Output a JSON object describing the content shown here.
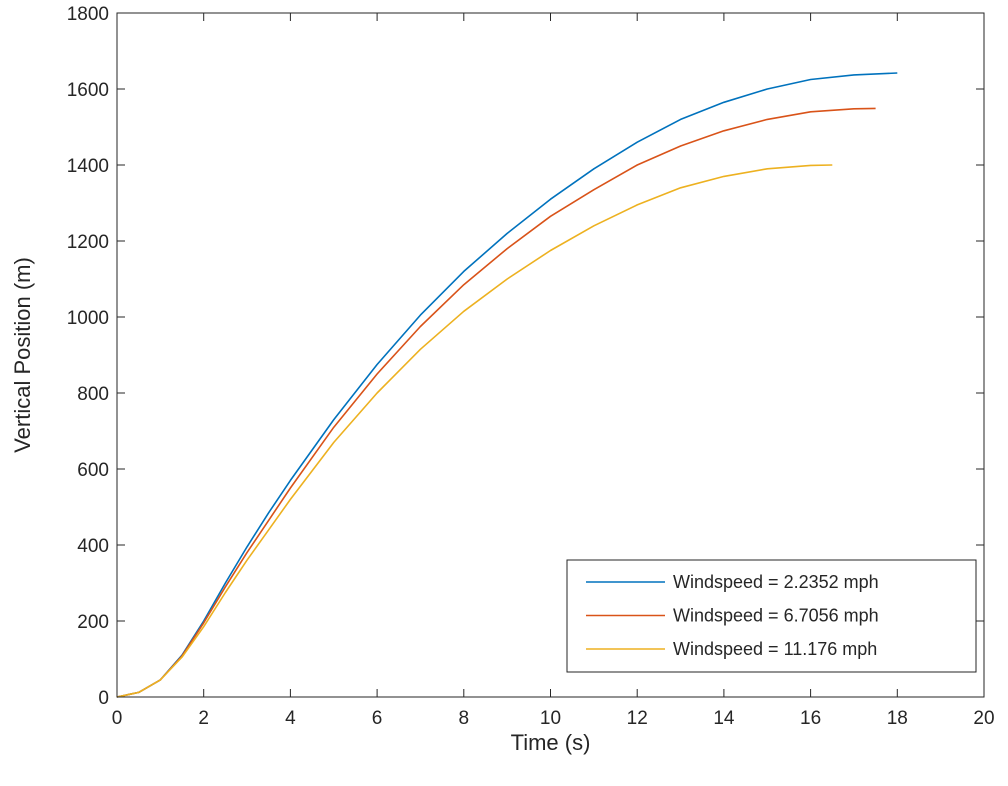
{
  "chart_data": {
    "type": "line",
    "title": "",
    "xlabel": "Time (s)",
    "ylabel": "Vertical Position (m)",
    "xlim": [
      0,
      20
    ],
    "ylim": [
      0,
      1800
    ],
    "xticks": [
      0,
      2,
      4,
      6,
      8,
      10,
      12,
      14,
      16,
      18,
      20
    ],
    "yticks": [
      0,
      200,
      400,
      600,
      800,
      1000,
      1200,
      1400,
      1600,
      1800
    ],
    "grid": false,
    "legend_position": "bottom-right",
    "series": [
      {
        "name": "Windspeed = 2.2352 mph",
        "color": "#0072BD",
        "x": [
          0,
          0.5,
          1,
          1.5,
          2,
          2.5,
          3,
          3.5,
          4,
          5,
          6,
          7,
          8,
          9,
          10,
          11,
          12,
          13,
          14,
          15,
          16,
          17,
          18
        ],
        "y": [
          0,
          12,
          45,
          110,
          200,
          300,
          395,
          485,
          570,
          730,
          875,
          1005,
          1120,
          1220,
          1310,
          1390,
          1460,
          1520,
          1565,
          1600,
          1625,
          1637,
          1642
        ]
      },
      {
        "name": "Windspeed = 6.7056 mph",
        "color": "#D95319",
        "x": [
          0,
          0.5,
          1,
          1.5,
          2,
          2.5,
          3,
          3.5,
          4,
          5,
          6,
          7,
          8,
          9,
          10,
          11,
          12,
          13,
          14,
          15,
          16,
          17,
          17.5
        ],
        "y": [
          0,
          12,
          45,
          108,
          195,
          290,
          380,
          465,
          550,
          710,
          850,
          975,
          1085,
          1180,
          1265,
          1335,
          1400,
          1450,
          1490,
          1520,
          1540,
          1548,
          1549
        ]
      },
      {
        "name": "Windspeed = 11.176 mph",
        "color": "#EDB120",
        "x": [
          0,
          0.5,
          1,
          1.5,
          2,
          2.5,
          3,
          3.5,
          4,
          5,
          6,
          7,
          8,
          9,
          10,
          11,
          12,
          13,
          14,
          15,
          16,
          16.5
        ],
        "y": [
          0,
          12,
          45,
          105,
          185,
          275,
          360,
          440,
          520,
          670,
          800,
          915,
          1015,
          1100,
          1175,
          1240,
          1295,
          1340,
          1370,
          1390,
          1399,
          1400
        ]
      }
    ]
  }
}
